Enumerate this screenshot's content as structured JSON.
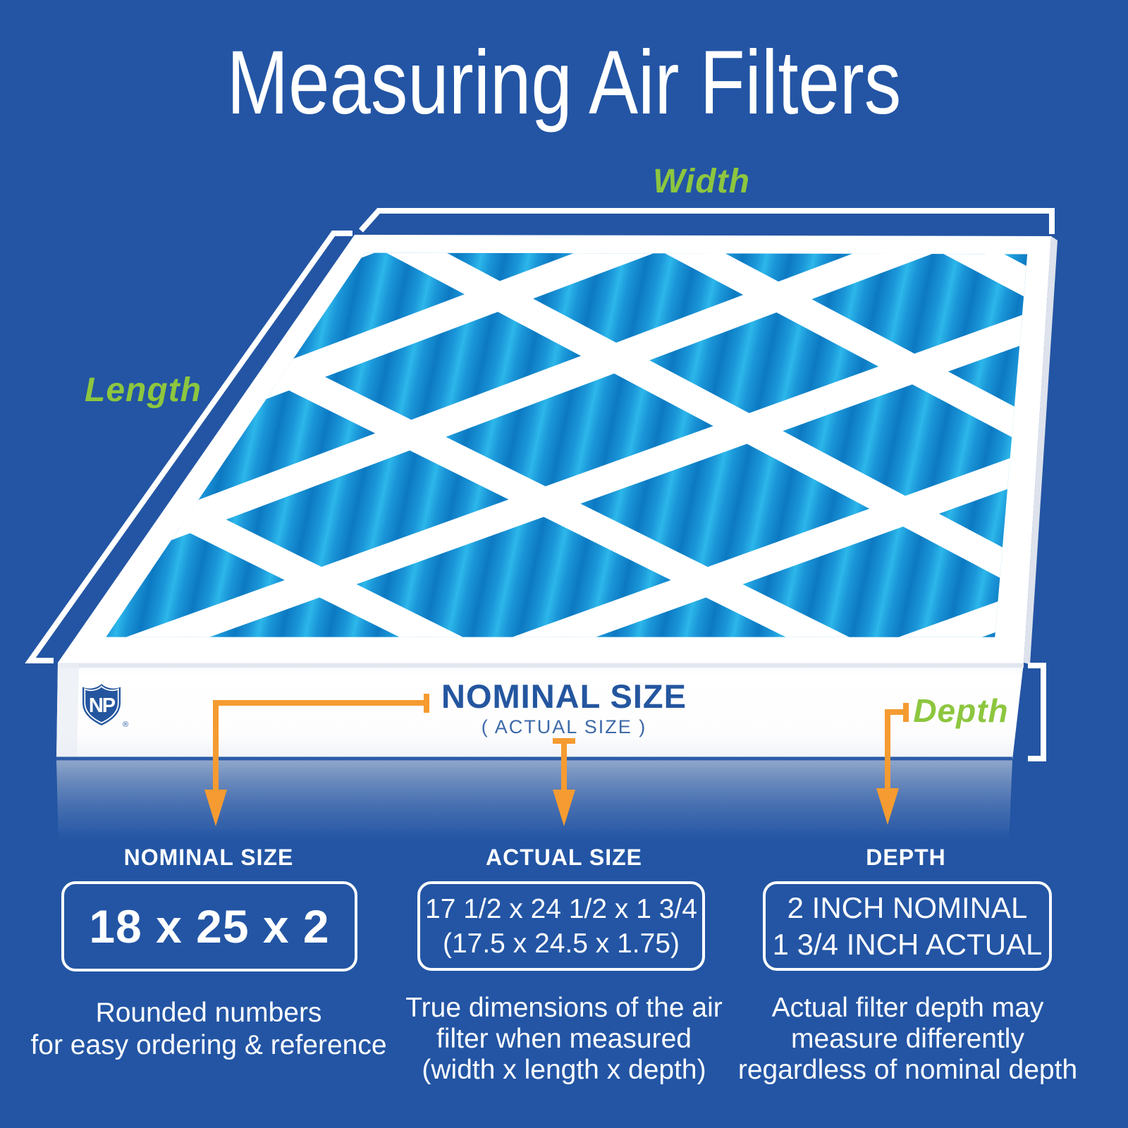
{
  "title": "Measuring Air Filters",
  "dimension_labels": {
    "width": "Width",
    "length": "Length",
    "depth": "Depth"
  },
  "filter": {
    "nominal_size_label": "NOMINAL SIZE",
    "actual_size_label": "( ACTUAL SIZE )",
    "logo_text": "NP",
    "logo_mark": "®"
  },
  "columns": [
    {
      "header": "NOMINAL SIZE",
      "box_lines": [
        "18 x 25 x 2"
      ],
      "caption_lines": [
        "Rounded numbers",
        "for easy ordering & reference"
      ]
    },
    {
      "header": "ACTUAL SIZE",
      "box_lines": [
        "17 1/2 x 24 1/2 x 1 3/4",
        "(17.5 x 24.5 x 1.75)"
      ],
      "caption_lines": [
        "True dimensions of the air",
        "filter when measured",
        "(width x length x depth)"
      ]
    },
    {
      "header": "DEPTH",
      "box_lines": [
        "2 INCH NOMINAL",
        "1 3/4 INCH ACTUAL"
      ],
      "caption_lines": [
        "Actual filter depth may",
        "measure differently",
        "regardless of nominal depth"
      ]
    }
  ],
  "colors": {
    "background": "#2355a4",
    "accent_green": "#8dc63f",
    "accent_orange": "#f59b31",
    "label_blue": "#24569f",
    "pleat_dark": "#0c79c2",
    "pleat_mid": "#1b96d8",
    "pleat_bright": "#2cb7ea",
    "frame_white": "#ffffff"
  }
}
